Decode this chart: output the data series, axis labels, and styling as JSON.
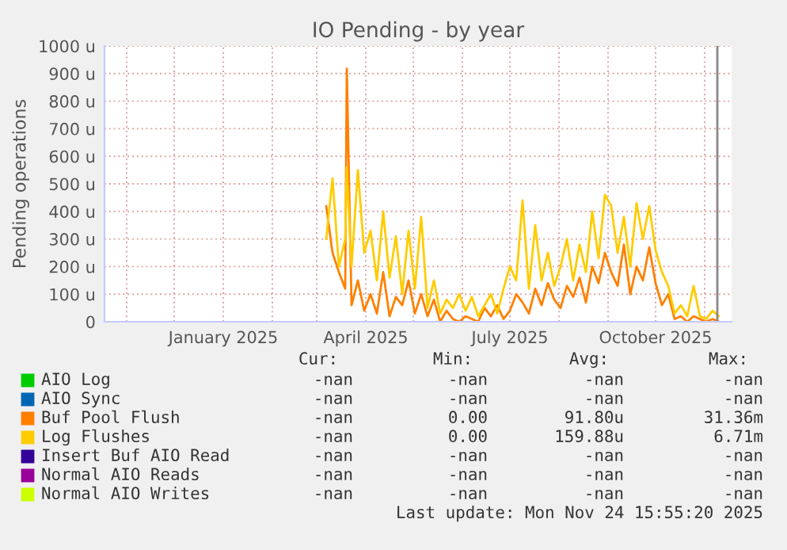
{
  "chart_data": {
    "type": "line",
    "title": "IO Pending - by year",
    "ylabel": "Pending operations",
    "x": [
      "2025-03-07",
      "2025-03-11",
      "2025-03-15",
      "2025-03-19",
      "2025-03-20",
      "2025-03-23",
      "2025-03-27",
      "2025-03-31",
      "2025-04-04",
      "2025-04-08",
      "2025-04-12",
      "2025-04-16",
      "2025-04-20",
      "2025-04-24",
      "2025-04-28",
      "2025-05-02",
      "2025-05-06",
      "2025-05-10",
      "2025-05-14",
      "2025-05-18",
      "2025-05-22",
      "2025-05-26",
      "2025-05-30",
      "2025-06-03",
      "2025-06-07",
      "2025-06-11",
      "2025-06-15",
      "2025-06-19",
      "2025-06-23",
      "2025-06-27",
      "2025-07-01",
      "2025-07-05",
      "2025-07-09",
      "2025-07-13",
      "2025-07-17",
      "2025-07-21",
      "2025-07-25",
      "2025-07-29",
      "2025-08-02",
      "2025-08-06",
      "2025-08-10",
      "2025-08-14",
      "2025-08-18",
      "2025-08-22",
      "2025-08-26",
      "2025-08-30",
      "2025-09-03",
      "2025-09-07",
      "2025-09-11",
      "2025-09-15",
      "2025-09-19",
      "2025-09-23",
      "2025-09-27",
      "2025-10-01",
      "2025-10-05",
      "2025-10-09",
      "2025-10-13",
      "2025-10-17",
      "2025-10-21",
      "2025-10-25",
      "2025-10-29",
      "2025-11-02",
      "2025-11-06",
      "2025-11-10"
    ],
    "series": [
      {
        "name": "AIO Log",
        "color": "#00cc00",
        "values": [
          null,
          null,
          null,
          null,
          null,
          null,
          null,
          null,
          null,
          null,
          null,
          null,
          null,
          null,
          null,
          null,
          null,
          null,
          null,
          null,
          null,
          null,
          null,
          null,
          null,
          null,
          null,
          null,
          null,
          null,
          null,
          null,
          null,
          null,
          null,
          null,
          null,
          null,
          null,
          null,
          null,
          null,
          null,
          null,
          null,
          null,
          null,
          null,
          null,
          null,
          null,
          null,
          null,
          null,
          null,
          null,
          null,
          null,
          null,
          null,
          null,
          null,
          null,
          null
        ]
      },
      {
        "name": "AIO Sync",
        "color": "#0066b3",
        "values": [
          null,
          null,
          null,
          null,
          null,
          null,
          null,
          null,
          null,
          null,
          null,
          null,
          null,
          null,
          null,
          null,
          null,
          null,
          null,
          null,
          null,
          null,
          null,
          null,
          null,
          null,
          null,
          null,
          null,
          null,
          null,
          null,
          null,
          null,
          null,
          null,
          null,
          null,
          null,
          null,
          null,
          null,
          null,
          null,
          null,
          null,
          null,
          null,
          null,
          null,
          null,
          null,
          null,
          null,
          null,
          null,
          null,
          null,
          null,
          null,
          null,
          null,
          null,
          null
        ]
      },
      {
        "name": "Buf Pool Flush",
        "color": "#ff8000",
        "values": [
          420,
          250,
          180,
          120,
          918,
          60,
          150,
          40,
          100,
          30,
          180,
          20,
          90,
          60,
          150,
          30,
          100,
          20,
          80,
          0,
          40,
          10,
          0,
          20,
          10,
          0,
          50,
          20,
          60,
          10,
          40,
          100,
          70,
          30,
          120,
          60,
          140,
          80,
          50,
          130,
          90,
          160,
          70,
          200,
          140,
          250,
          180,
          130,
          280,
          100,
          200,
          150,
          270,
          140,
          60,
          100,
          10,
          20,
          0,
          20,
          10,
          0,
          10,
          0
        ]
      },
      {
        "name": "Log Flushes",
        "color": "#ffcc00",
        "values": [
          300,
          520,
          200,
          300,
          560,
          200,
          550,
          250,
          330,
          150,
          400,
          160,
          310,
          100,
          330,
          120,
          380,
          50,
          150,
          30,
          80,
          50,
          100,
          40,
          90,
          20,
          60,
          100,
          30,
          120,
          200,
          150,
          440,
          120,
          350,
          150,
          250,
          130,
          200,
          300,
          150,
          280,
          180,
          400,
          230,
          460,
          420,
          250,
          380,
          200,
          430,
          300,
          420,
          260,
          180,
          130,
          30,
          60,
          20,
          130,
          20,
          10,
          40,
          20
        ]
      },
      {
        "name": "Insert Buf AIO Read",
        "color": "#330099",
        "values": [
          null,
          null,
          null,
          null,
          null,
          null,
          null,
          null,
          null,
          null,
          null,
          null,
          null,
          null,
          null,
          null,
          null,
          null,
          null,
          null,
          null,
          null,
          null,
          null,
          null,
          null,
          null,
          null,
          null,
          null,
          null,
          null,
          null,
          null,
          null,
          null,
          null,
          null,
          null,
          null,
          null,
          null,
          null,
          null,
          null,
          null,
          null,
          null,
          null,
          null,
          null,
          null,
          null,
          null,
          null,
          null,
          null,
          null,
          null,
          null,
          null,
          null,
          null,
          null
        ]
      },
      {
        "name": "Normal AIO Reads",
        "color": "#990099",
        "values": [
          null,
          null,
          null,
          null,
          null,
          null,
          null,
          null,
          null,
          null,
          null,
          null,
          null,
          null,
          null,
          null,
          null,
          null,
          null,
          null,
          null,
          null,
          null,
          null,
          null,
          null,
          null,
          null,
          null,
          null,
          null,
          null,
          null,
          null,
          null,
          null,
          null,
          null,
          null,
          null,
          null,
          null,
          null,
          null,
          null,
          null,
          null,
          null,
          null,
          null,
          null,
          null,
          null,
          null,
          null,
          null,
          null,
          null,
          null,
          null,
          null,
          null,
          null,
          null
        ]
      },
      {
        "name": "Normal AIO Writes",
        "color": "#ccff00",
        "values": [
          null,
          null,
          null,
          null,
          null,
          null,
          null,
          null,
          null,
          null,
          null,
          null,
          null,
          null,
          null,
          null,
          null,
          null,
          null,
          null,
          null,
          null,
          null,
          null,
          null,
          null,
          null,
          null,
          null,
          null,
          null,
          null,
          null,
          null,
          null,
          null,
          null,
          null,
          null,
          null,
          null,
          null,
          null,
          null,
          null,
          null,
          null,
          null,
          null,
          null,
          null,
          null,
          null,
          null,
          null,
          null,
          null,
          null,
          null,
          null,
          null,
          null,
          null,
          null
        ]
      }
    ],
    "xlim": [
      "2024-10-18",
      "2025-11-18"
    ],
    "xticks": [
      {
        "value": "2024-11-01",
        "label": null
      },
      {
        "value": "2024-12-01",
        "label": null
      },
      {
        "value": "2025-01-01",
        "label": "January 2025"
      },
      {
        "value": "2025-02-01",
        "label": null
      },
      {
        "value": "2025-03-01",
        "label": null
      },
      {
        "value": "2025-04-01",
        "label": "April 2025"
      },
      {
        "value": "2025-05-01",
        "label": null
      },
      {
        "value": "2025-06-01",
        "label": null
      },
      {
        "value": "2025-07-01",
        "label": "July 2025"
      },
      {
        "value": "2025-08-01",
        "label": null
      },
      {
        "value": "2025-09-01",
        "label": null
      },
      {
        "value": "2025-10-01",
        "label": "October 2025"
      },
      {
        "value": "2025-11-01",
        "label": null
      }
    ],
    "ylim": [
      0,
      1000
    ],
    "yticks": [
      0,
      {
        "value": 100,
        "label": "100 u"
      },
      {
        "value": 200,
        "label": "200 u"
      },
      {
        "value": 300,
        "label": "300 u"
      },
      {
        "value": 400,
        "label": "400 u"
      },
      {
        "value": 500,
        "label": "500 u"
      },
      {
        "value": 600,
        "label": "600 u"
      },
      {
        "value": 700,
        "label": "700 u"
      },
      {
        "value": 800,
        "label": "800 u"
      },
      {
        "value": 900,
        "label": "900 u"
      },
      {
        "value": 1000,
        "label": "1000 u"
      }
    ],
    "ref_lines": [
      {
        "axis": "x",
        "value": "2025-11-09",
        "color": "#888888"
      }
    ],
    "grid": true,
    "legend": "bottom",
    "annotations": [
      "Cur:",
      "Min:",
      "Avg:",
      "Max:",
      "-nan",
      "-nan",
      "-nan",
      "-nan",
      "-nan",
      "-nan",
      "-nan",
      "-nan",
      "-nan",
      "0.00",
      "91.80u",
      "31.36m",
      "-nan",
      "0.00",
      "159.88u",
      "6.71m",
      "-nan",
      "-nan",
      "-nan",
      "-nan",
      "-nan",
      "-nan",
      "-nan",
      "-nan",
      "-nan",
      "-nan",
      "-nan",
      "-nan",
      "Last update: Mon Nov 24 15:55:20 2025"
    ]
  }
}
